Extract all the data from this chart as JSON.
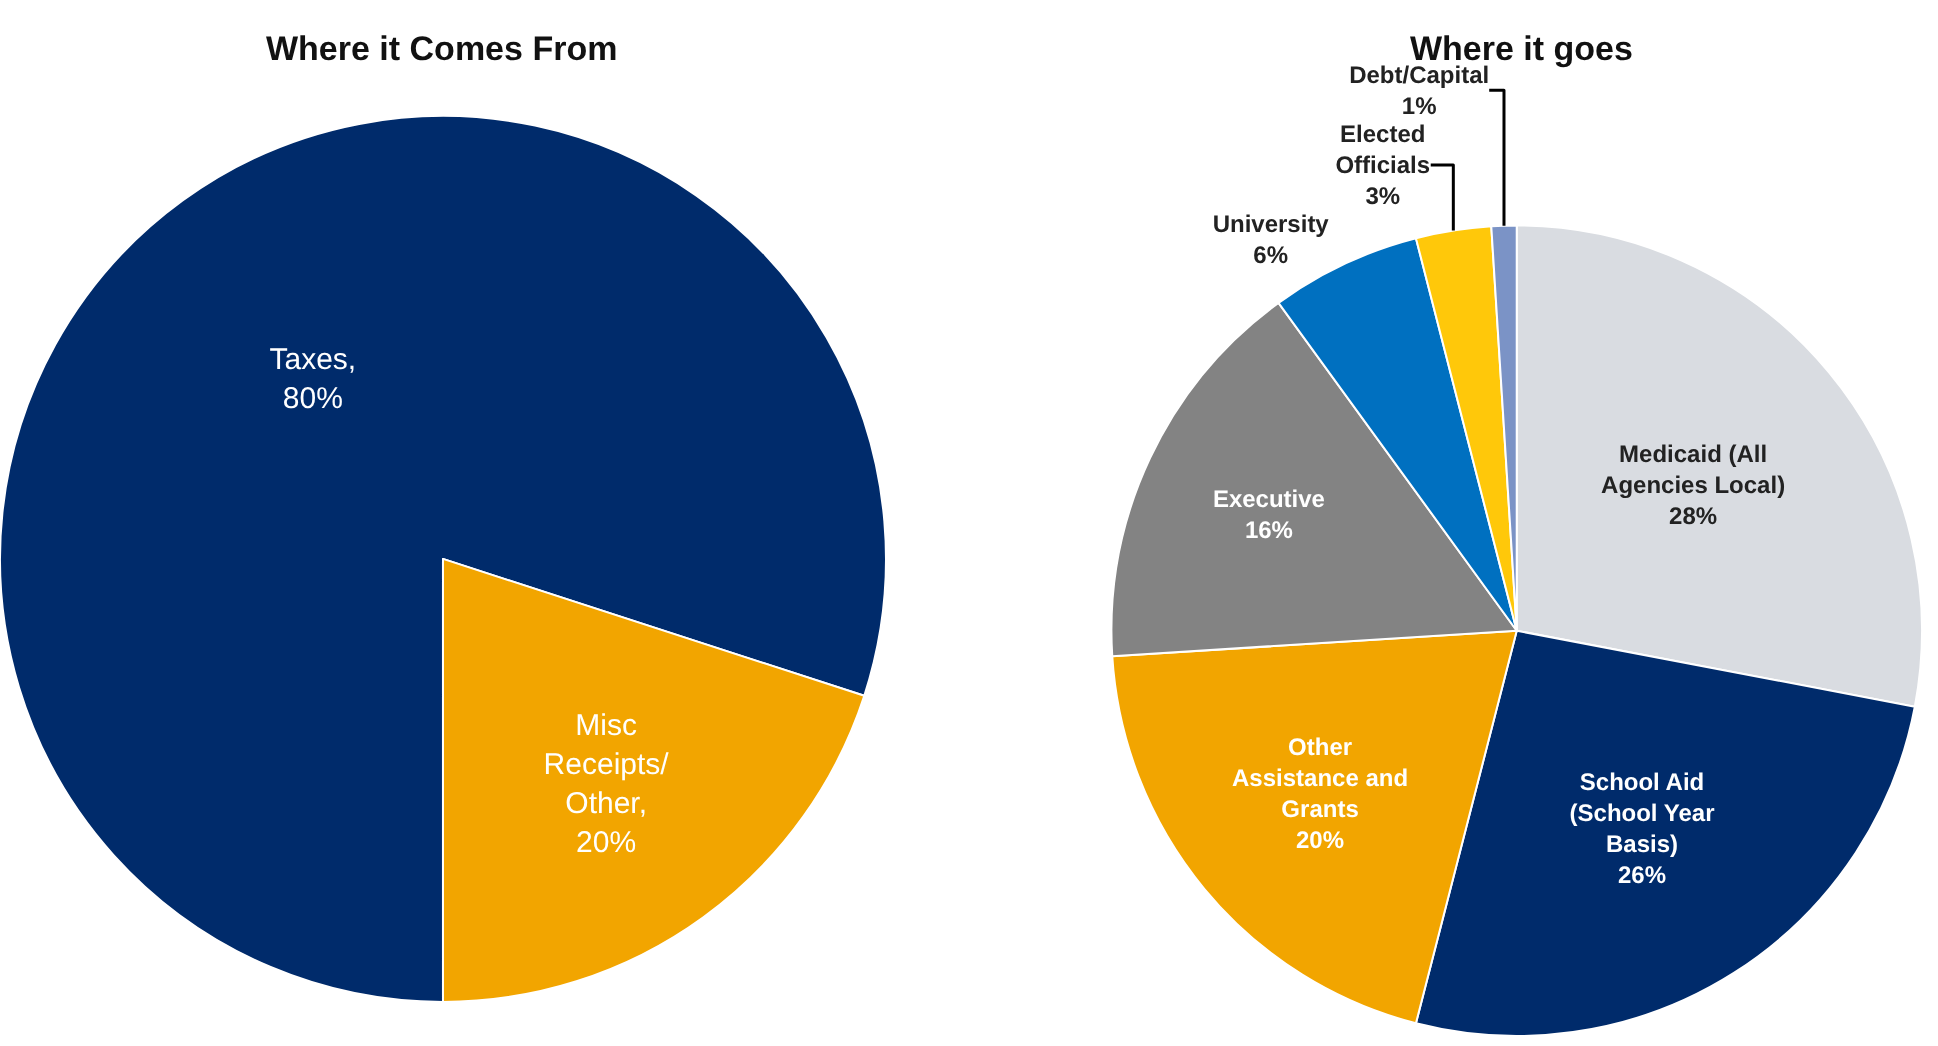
{
  "chart_data": [
    {
      "type": "pie",
      "title": "Where it Comes From",
      "categories": [
        "Taxes",
        "Misc\nReceipts/\nOther"
      ],
      "values": [
        80,
        20
      ],
      "value_labels": [
        ",\n80%",
        ",\n20%"
      ],
      "colors": [
        "#002b6b",
        "#f2a500"
      ]
    },
    {
      "type": "pie",
      "title": "Where it goes",
      "categories": [
        "Medicaid (All\nAgencies Local)",
        "School Aid\n(School Year\nBasis)",
        "Other\nAssistance and\nGrants",
        "Executive",
        "University",
        "Elected\nOfficials",
        "Debt/Capital"
      ],
      "values": [
        28,
        26,
        20,
        16,
        6,
        3,
        1
      ],
      "value_labels": [
        "28%",
        "26%",
        "20%",
        "16%",
        "6%",
        "3%",
        "1%"
      ],
      "colors": [
        "#d9dce1",
        "#002b6b",
        "#f2a500",
        "#838383",
        "#0070c0",
        "#ffc80a",
        "#7b93c6"
      ]
    }
  ]
}
